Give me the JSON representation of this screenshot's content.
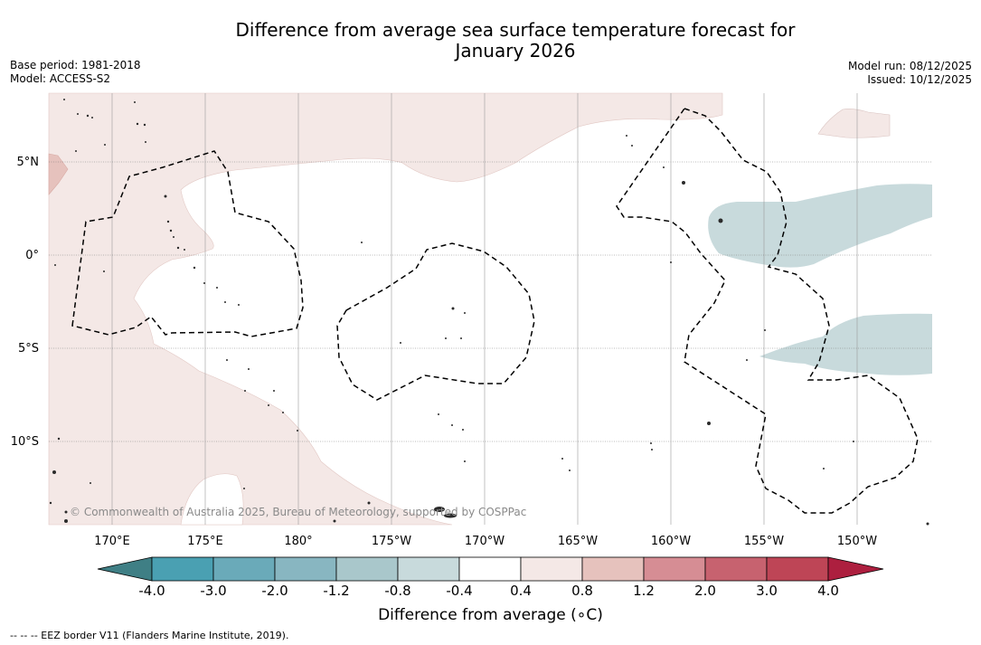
{
  "title": {
    "line1": "Difference from average sea surface temperature forecast for",
    "line2": "January 2026"
  },
  "meta": {
    "base_period": "Base period: 1981-2018",
    "model": "Model: ACCESS-S2",
    "model_run": "Model run: 08/12/2025",
    "issued": "Issued: 10/12/2025"
  },
  "map": {
    "lon_labels": [
      "170°E",
      "175°E",
      "180°",
      "175°W",
      "170°W",
      "165°W",
      "160°W",
      "155°W",
      "150°W"
    ],
    "lat_labels": [
      "5°N",
      "0°",
      "5°S",
      "10°S"
    ],
    "credit": "© Commonwealth of Australia 2025, Bureau of Meteorology, supported by COSPPac",
    "land_color": "#2b2b2b",
    "eez_color": "#000000"
  },
  "colorbar": {
    "tick_labels": [
      "-4.0",
      "-3.0",
      "-2.0",
      "-1.2",
      "-0.8",
      "-0.4",
      "0.4",
      "0.8",
      "1.2",
      "2.0",
      "3.0",
      "4.0"
    ],
    "colors": [
      "#3f7f85",
      "#4aa0b2",
      "#6aaab9",
      "#88b6c1",
      "#a9c7cb",
      "#c8dadc",
      "#ffffff",
      "#f4e8e6",
      "#e6c2bd",
      "#d68d94",
      "#c7626f",
      "#be4556",
      "#ad1f3f"
    ],
    "label": "Difference from average (∘C)"
  },
  "footnote": "--  --  -- EEZ border V11 (Flanders Marine Institute, 2019)."
}
